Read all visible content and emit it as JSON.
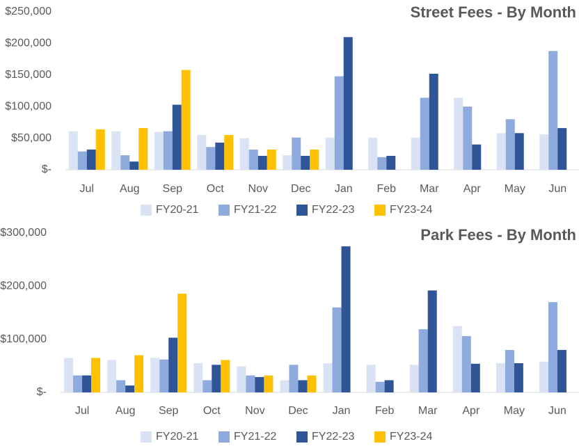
{
  "chart_data": [
    {
      "type": "bar",
      "title": "Street Fees - By Month",
      "categories": [
        "Jul",
        "Aug",
        "Sep",
        "Oct",
        "Nov",
        "Dec",
        "Jan",
        "Feb",
        "Mar",
        "Apr",
        "May",
        "Jun"
      ],
      "series": [
        {
          "name": "FY20-21",
          "color": "#dae3f3",
          "values": [
            61000,
            61000,
            60000,
            55000,
            50000,
            23000,
            51000,
            51000,
            51000,
            114000,
            58000,
            56000
          ]
        },
        {
          "name": "FY21-22",
          "color": "#8faadc",
          "values": [
            29000,
            23000,
            61000,
            36000,
            32000,
            51000,
            148000,
            20000,
            114000,
            100000,
            80000,
            188000
          ]
        },
        {
          "name": "FY22-23",
          "color": "#2f5597",
          "values": [
            32000,
            13000,
            103000,
            43000,
            22000,
            22000,
            210000,
            22000,
            152000,
            40000,
            58000,
            66000
          ]
        },
        {
          "name": "FY23-24",
          "color": "#ffc000",
          "values": [
            64000,
            66000,
            158000,
            55000,
            32000,
            32000,
            null,
            null,
            null,
            null,
            null,
            null
          ]
        }
      ],
      "ylim": [
        0,
        250000
      ],
      "yticks": [
        {
          "value": 0,
          "label": "$-"
        },
        {
          "value": 50000,
          "label": "$50,000"
        },
        {
          "value": 100000,
          "label": "$100,000"
        },
        {
          "value": 150000,
          "label": "$150,000"
        },
        {
          "value": 200000,
          "label": "$200,000"
        },
        {
          "value": 250000,
          "label": "$250,000"
        }
      ],
      "legend": "bottom"
    },
    {
      "type": "bar",
      "title": "Park Fees - By Month",
      "categories": [
        "Jul",
        "Aug",
        "Sep",
        "Oct",
        "Nov",
        "Dec",
        "Jan",
        "Feb",
        "Mar",
        "Apr",
        "May",
        "Jun"
      ],
      "series": [
        {
          "name": "FY20-21",
          "color": "#dae3f3",
          "values": [
            65000,
            61000,
            65000,
            55000,
            49000,
            23000,
            55000,
            52000,
            52000,
            125000,
            55000,
            58000
          ]
        },
        {
          "name": "FY21-22",
          "color": "#8faadc",
          "values": [
            32000,
            23000,
            62000,
            23000,
            32000,
            52000,
            160000,
            20000,
            119000,
            106000,
            80000,
            170000
          ]
        },
        {
          "name": "FY22-23",
          "color": "#2f5597",
          "values": [
            32000,
            13000,
            103000,
            52000,
            29000,
            23000,
            275000,
            23000,
            192000,
            54000,
            55000,
            80000
          ]
        },
        {
          "name": "FY23-24",
          "color": "#ffc000",
          "values": [
            65000,
            70000,
            186000,
            61000,
            32000,
            32000,
            null,
            null,
            null,
            null,
            null,
            null
          ]
        }
      ],
      "ylim": [
        0,
        300000
      ],
      "yticks": [
        {
          "value": 0,
          "label": "$-"
        },
        {
          "value": 100000,
          "label": "$100,000"
        },
        {
          "value": 200000,
          "label": "$200,000"
        },
        {
          "value": 300000,
          "label": "$300,000"
        }
      ],
      "legend": "bottom"
    }
  ]
}
